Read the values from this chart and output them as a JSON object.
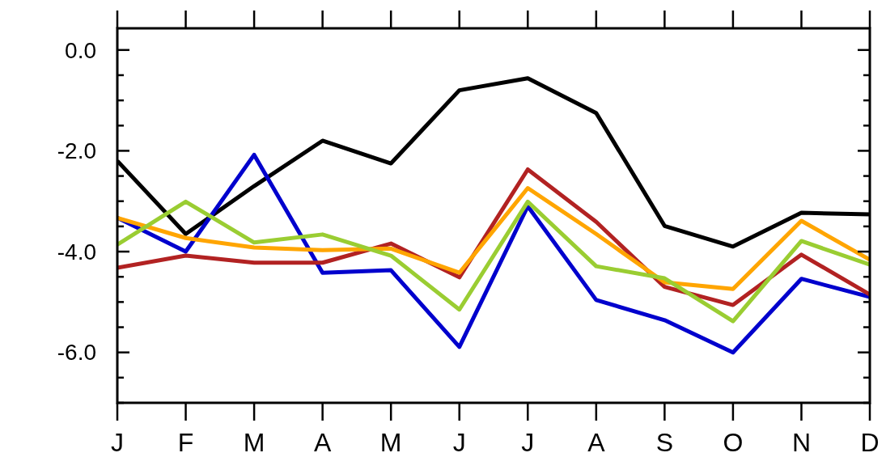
{
  "chart_data": {
    "type": "line",
    "categories": [
      "J",
      "F",
      "M",
      "A",
      "M",
      "J",
      "J",
      "A",
      "S",
      "O",
      "N",
      "D"
    ],
    "series": [
      {
        "color": "#000000",
        "values": [
          -2.2,
          -3.65,
          -2.7,
          -1.8,
          -2.25,
          -0.8,
          -0.56,
          -1.25,
          -3.49,
          -3.9,
          -3.23,
          -3.26
        ]
      },
      {
        "color": "#0000cd",
        "values": [
          -3.33,
          -4.0,
          -2.08,
          -4.42,
          -4.37,
          -5.89,
          -3.1,
          -4.96,
          -5.36,
          -6.0,
          -4.54,
          -4.9
        ]
      },
      {
        "color": "#b22222",
        "values": [
          -4.32,
          -4.08,
          -4.22,
          -4.22,
          -3.84,
          -4.51,
          -2.37,
          -3.41,
          -4.7,
          -5.06,
          -4.06,
          -4.85
        ]
      },
      {
        "color": "#ffa500",
        "values": [
          -3.33,
          -3.73,
          -3.92,
          -3.97,
          -3.94,
          -4.42,
          -2.74,
          -3.65,
          -4.61,
          -4.74,
          -3.39,
          -4.16
        ]
      },
      {
        "color": "#9acd32",
        "values": [
          -3.86,
          -3.01,
          -3.82,
          -3.66,
          -4.08,
          -5.15,
          -3.01,
          -4.29,
          -4.53,
          -5.38,
          -3.79,
          -4.26
        ]
      }
    ],
    "ylim": [
      -7,
      0.43
    ],
    "yticks": [
      {
        "value": -7,
        "label": null
      },
      {
        "value": -6.5,
        "label": null
      },
      {
        "value": -6,
        "label": "-6.0"
      },
      {
        "value": -5.5,
        "label": null
      },
      {
        "value": -5,
        "label": null
      },
      {
        "value": -4.5,
        "label": null
      },
      {
        "value": -4,
        "label": "-4.0"
      },
      {
        "value": -3.5,
        "label": null
      },
      {
        "value": -3,
        "label": null
      },
      {
        "value": -2.5,
        "label": null
      },
      {
        "value": -2,
        "label": "-2.0"
      },
      {
        "value": -1.5,
        "label": null
      },
      {
        "value": -1,
        "label": null
      },
      {
        "value": -0.5,
        "label": null
      },
      {
        "value": 0,
        "label": "0.0"
      }
    ],
    "grid": false,
    "marker": "none",
    "line_style": "solid"
  }
}
